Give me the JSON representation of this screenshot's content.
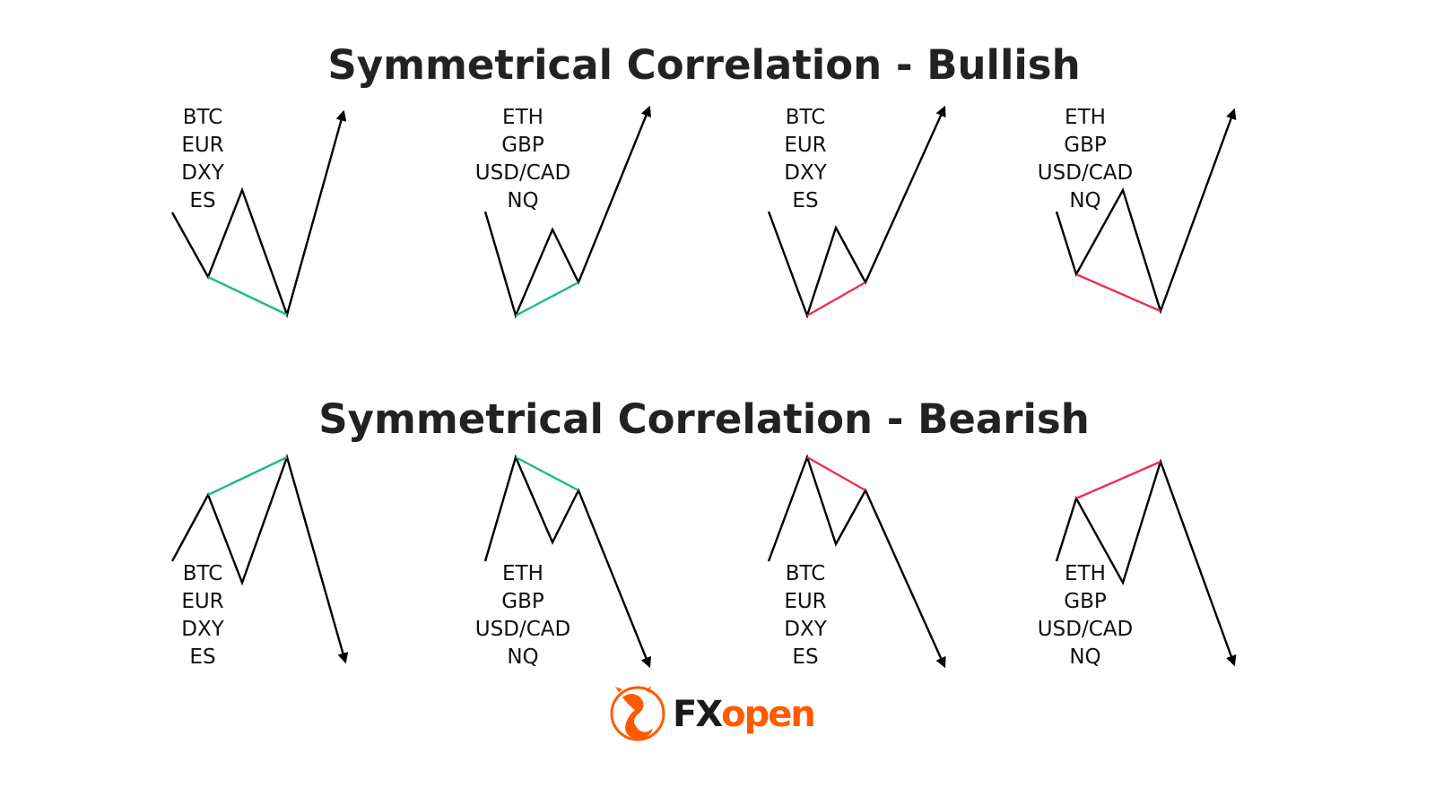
{
  "titles": {
    "bullish": "Symmetrical Correlation - Bullish",
    "bearish": "Symmetrical Correlation - Bearish"
  },
  "groups": {
    "a": [
      "BTC",
      "EUR",
      "DXY",
      "ES"
    ],
    "b": [
      "ETH",
      "GBP",
      "USD/CAD",
      "NQ"
    ]
  },
  "colors": {
    "agreement_line": "#1fb98a",
    "divergence_line": "#ef2f4f",
    "price_line": "#000000",
    "brand_orange": "#ff5a00",
    "brand_dark": "#1a1a1a"
  },
  "logo": {
    "part1": "FX",
    "part2": "open",
    "icon": "bull-logo-icon"
  }
}
